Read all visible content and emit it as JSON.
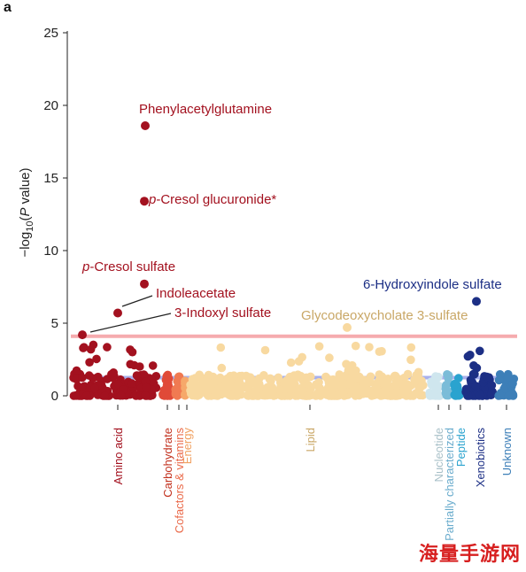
{
  "panel_label": "a",
  "watermark": "海量手游网",
  "chart_data": {
    "type": "scatter",
    "subtype": "manhattan",
    "xlabel": "",
    "ylabel": "−log10(P value)",
    "ylim": [
      0,
      25
    ],
    "yticks": [
      0,
      5,
      10,
      15,
      20,
      25
    ],
    "grid": false,
    "thresholds": [
      {
        "name": "significance-line",
        "value": 4.1,
        "color": "#f5a3a6"
      },
      {
        "name": "suggestive-line",
        "value": 1.25,
        "color": "#9fa8ea"
      }
    ],
    "categories": [
      {
        "name": "Amino acid",
        "color": "#a3111f",
        "label_color": "#a3111f"
      },
      {
        "name": "Carbohydrate",
        "color": "#e04a38",
        "label_color": "#c2311e"
      },
      {
        "name": "Cofactors & vitamins",
        "color": "#f07a52",
        "label_color": "#ea6a4a"
      },
      {
        "name": "Energy",
        "color": "#f6a86a",
        "label_color": "#f0a060"
      },
      {
        "name": "Lipid",
        "color": "#f8d9a0",
        "label_color": "#c9a766"
      },
      {
        "name": "Nucleotide",
        "color": "#cfe6ee",
        "label_color": "#a8c0c8"
      },
      {
        "name": "Partially characterized",
        "color": "#7bbcd8",
        "label_color": "#6aaccd"
      },
      {
        "name": "Peptide",
        "color": "#2aa3cf",
        "label_color": "#2aa3cf"
      },
      {
        "name": "Xenobiotics",
        "color": "#1c2f85",
        "label_color": "#1c2f85"
      },
      {
        "name": "Unknown",
        "color": "#3d7fb8",
        "label_color": "#3d7fb8"
      }
    ],
    "annotated_points": [
      {
        "label": "Phenylacetylglutamine",
        "category": "Amino acid",
        "y": 18.6
      },
      {
        "label": "p-Cresol glucuronide*",
        "label_italic_prefix": "p",
        "label_rest": "-Cresol glucuronide*",
        "category": "Amino acid",
        "y": 13.4
      },
      {
        "label": "p-Cresol sulfate",
        "label_italic_prefix": "p",
        "label_rest": "-Cresol sulfate",
        "category": "Amino acid",
        "y": 7.7
      },
      {
        "label": "Indoleacetate",
        "category": "Amino acid",
        "y": 5.7
      },
      {
        "label": "3-Indoxyl sulfate",
        "category": "Amino acid",
        "y": 4.2
      },
      {
        "label": "Glycodeoxycholate 3-sulfate",
        "category": "Lipid",
        "y": 4.7
      },
      {
        "label": "6-Hydroxyindole sulfate",
        "category": "Xenobiotics",
        "y": 6.5
      }
    ]
  }
}
